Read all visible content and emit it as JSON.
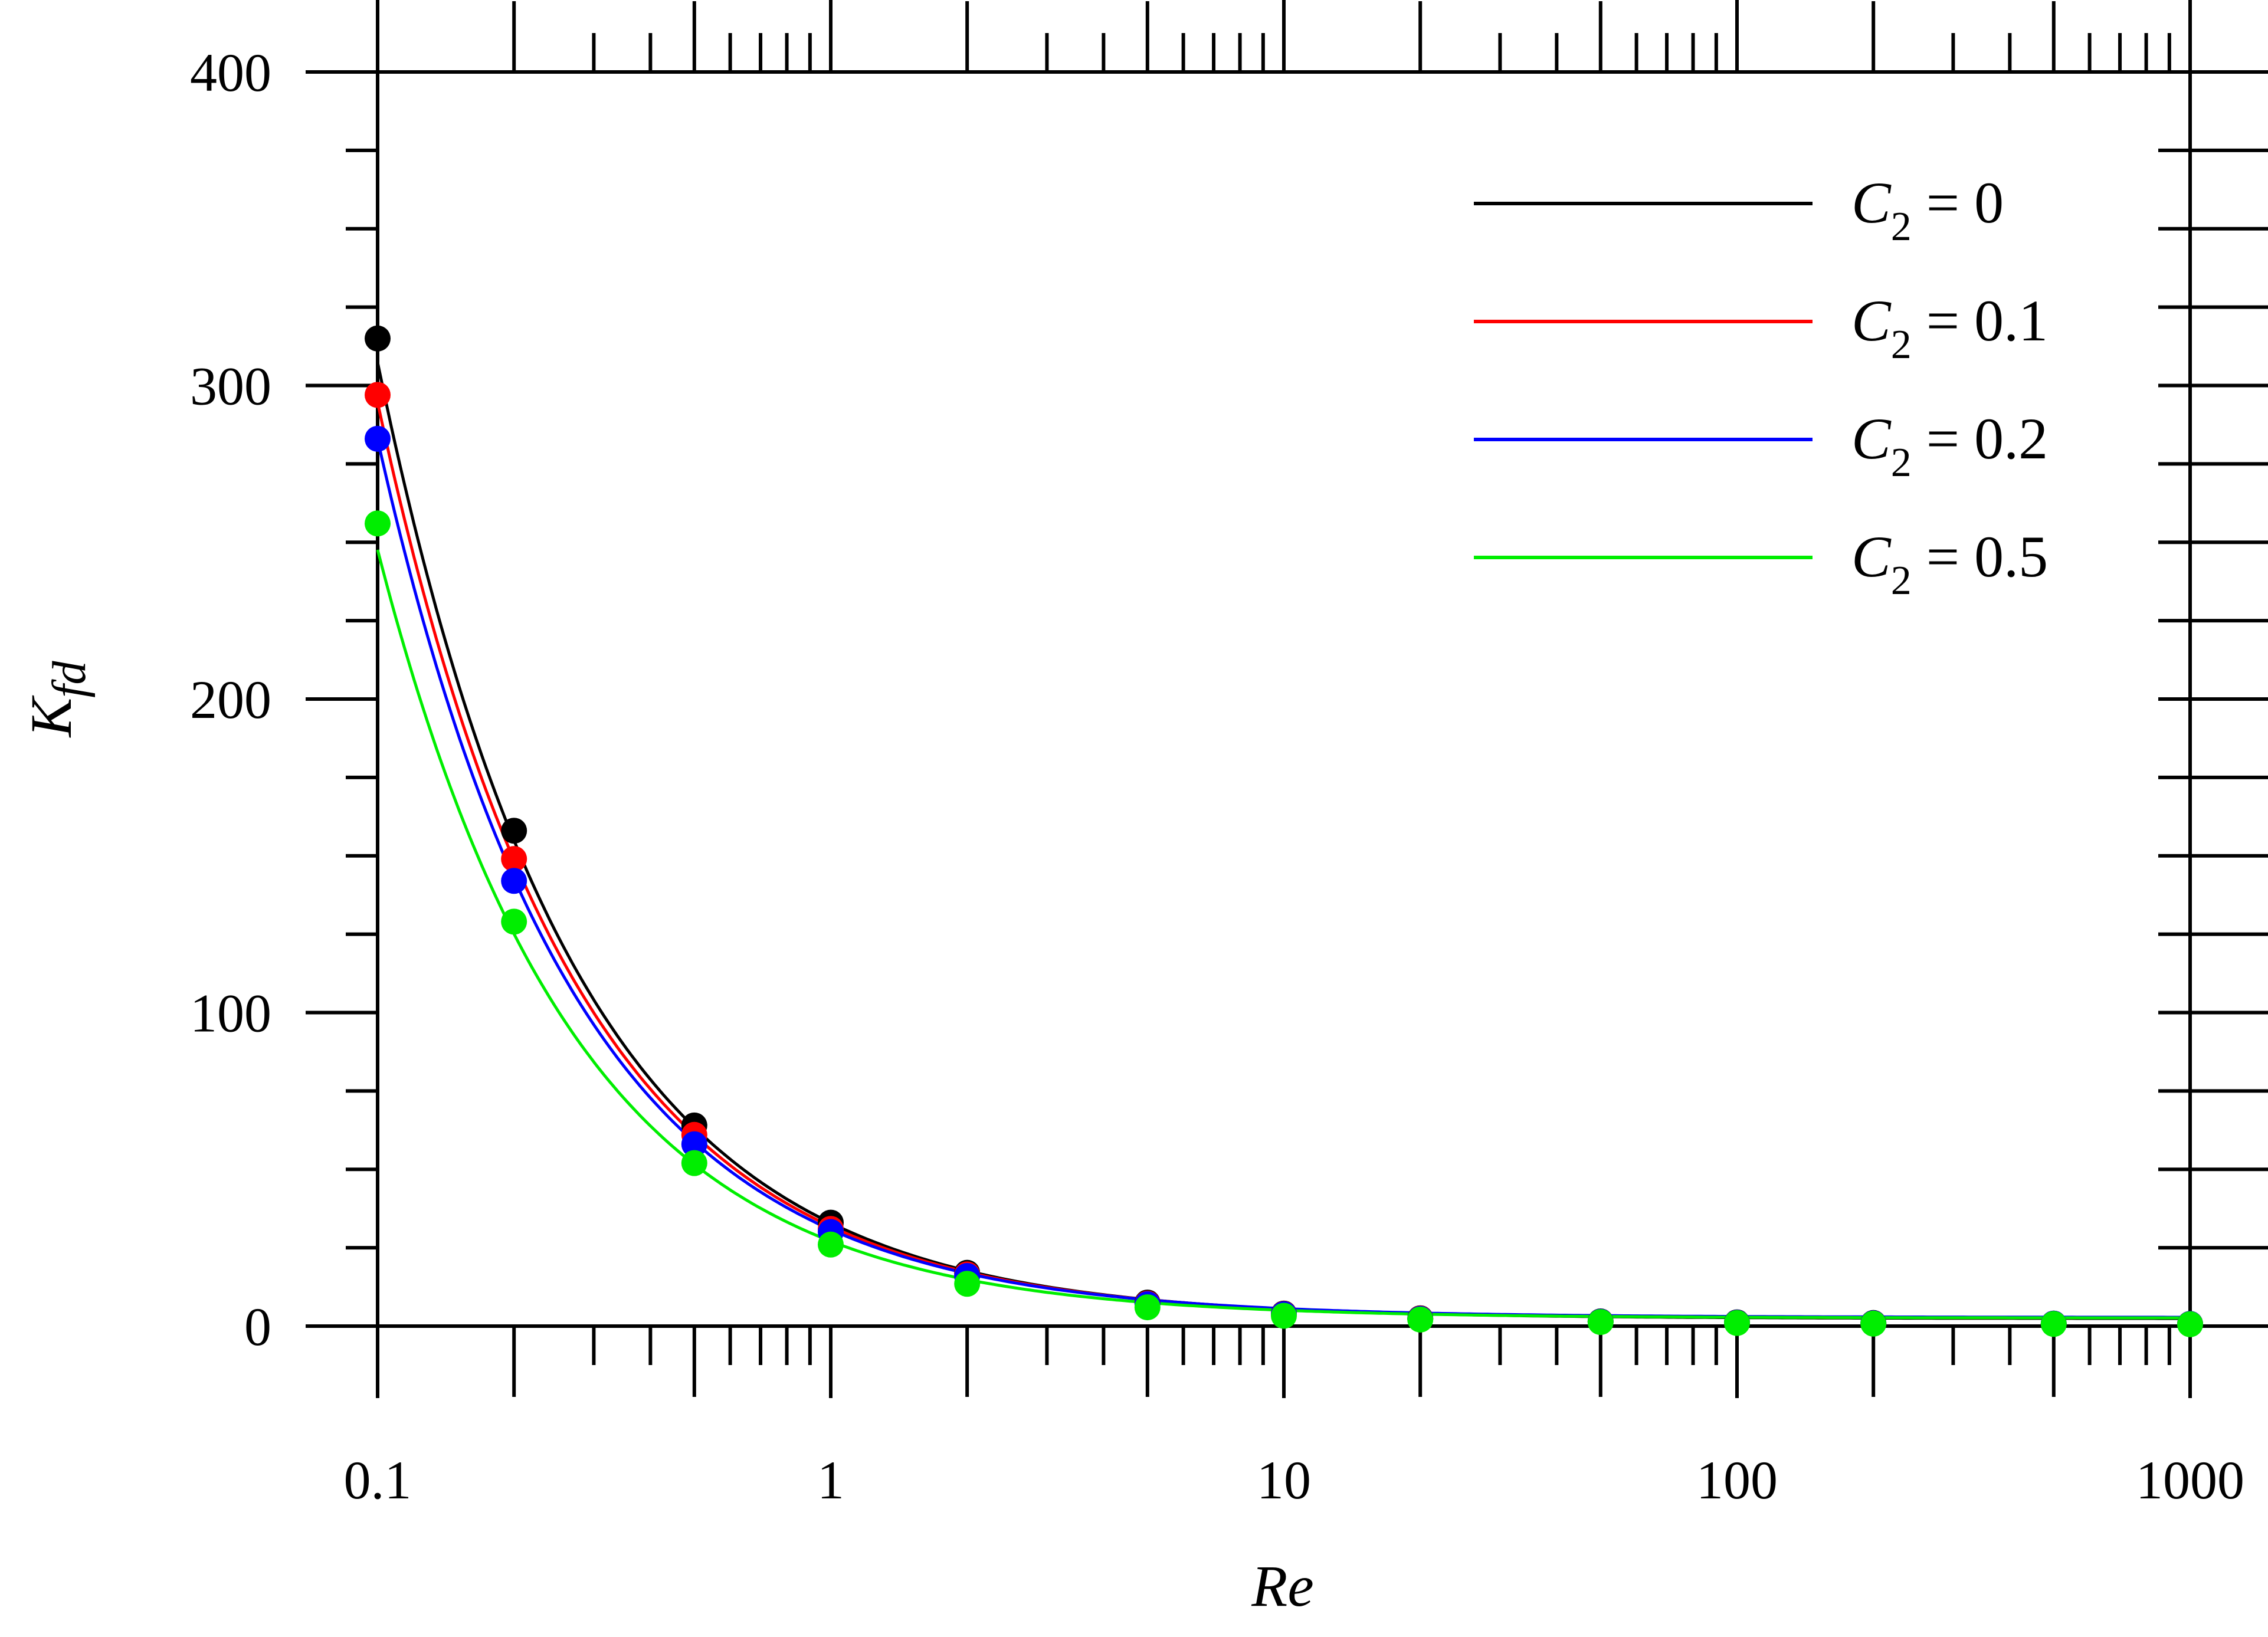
{
  "chart_data": {
    "type": "line",
    "title": "",
    "xlabel": "Re",
    "ylabel": {
      "base": "K",
      "subscript": "fd"
    },
    "x_scale": "log",
    "xlim": [
      0.1,
      1000
    ],
    "ylim": [
      0,
      400
    ],
    "x_tick_labels": [
      "0.1",
      "1",
      "10",
      "100",
      "1000"
    ],
    "x_ticks": [
      0.1,
      1,
      10,
      100,
      1000
    ],
    "y_tick_labels": [
      "0",
      "100",
      "200",
      "300",
      "400"
    ],
    "y_ticks": [
      0,
      100,
      200,
      300,
      400
    ],
    "grid": false,
    "legend_position": "top-right",
    "series": [
      {
        "name": "C2 = 0",
        "legend": {
          "base": "C",
          "subscript": "2",
          "rest": " = 0"
        },
        "color": "#000000",
        "markers": [
          [
            0.1,
            315
          ],
          [
            0.2,
            158
          ],
          [
            0.5,
            64
          ],
          [
            1,
            33
          ],
          [
            2,
            17
          ],
          [
            5,
            7.5
          ],
          [
            10,
            4
          ],
          [
            20,
            2.5
          ],
          [
            50,
            1.5
          ],
          [
            100,
            1.2
          ],
          [
            200,
            1.0
          ],
          [
            500,
            0.8
          ],
          [
            1000,
            0.7
          ]
        ],
        "curve_params": {
          "A": 30.5,
          "B": 2.4
        }
      },
      {
        "name": "C2 = 0.1",
        "legend": {
          "base": "C",
          "subscript": "2",
          "rest": " = 0.1"
        },
        "color": "#ff0000",
        "markers": [
          [
            0.1,
            297
          ],
          [
            0.2,
            149
          ],
          [
            0.5,
            61
          ],
          [
            1,
            31
          ],
          [
            2,
            16.5
          ],
          [
            5,
            7.2
          ],
          [
            10,
            3.9
          ],
          [
            20,
            2.4
          ],
          [
            50,
            1.4
          ],
          [
            100,
            1.1
          ],
          [
            200,
            0.9
          ],
          [
            500,
            0.8
          ],
          [
            1000,
            0.7
          ]
        ],
        "curve_params": {
          "A": 29.2,
          "B": 2.6
        }
      },
      {
        "name": "C2 = 0.2",
        "legend": {
          "base": "C",
          "subscript": "2",
          "rest": " = 0.2"
        },
        "color": "#0000ff",
        "markers": [
          [
            0.1,
            283
          ],
          [
            0.2,
            142
          ],
          [
            0.5,
            58
          ],
          [
            1,
            30
          ],
          [
            2,
            16
          ],
          [
            5,
            7
          ],
          [
            10,
            3.8
          ],
          [
            20,
            2.3
          ],
          [
            50,
            1.4
          ],
          [
            100,
            1.1
          ],
          [
            200,
            0.9
          ],
          [
            500,
            0.8
          ],
          [
            1000,
            0.7
          ]
        ],
        "curve_params": {
          "A": 28.0,
          "B": 2.8
        }
      },
      {
        "name": "C2 = 0.5",
        "legend": {
          "base": "C",
          "subscript": "2",
          "rest": " = 0.5"
        },
        "color": "#00ee00",
        "markers": [
          [
            0.1,
            256
          ],
          [
            0.2,
            129
          ],
          [
            0.5,
            52
          ],
          [
            1,
            26
          ],
          [
            2,
            13.5
          ],
          [
            5,
            6
          ],
          [
            10,
            3.3
          ],
          [
            20,
            2.1
          ],
          [
            50,
            1.3
          ],
          [
            100,
            1.0
          ],
          [
            200,
            0.8
          ],
          [
            500,
            0.7
          ],
          [
            1000,
            0.6
          ]
        ],
        "curve_params": {
          "A": 24.5,
          "B": 2.6
        }
      }
    ]
  }
}
